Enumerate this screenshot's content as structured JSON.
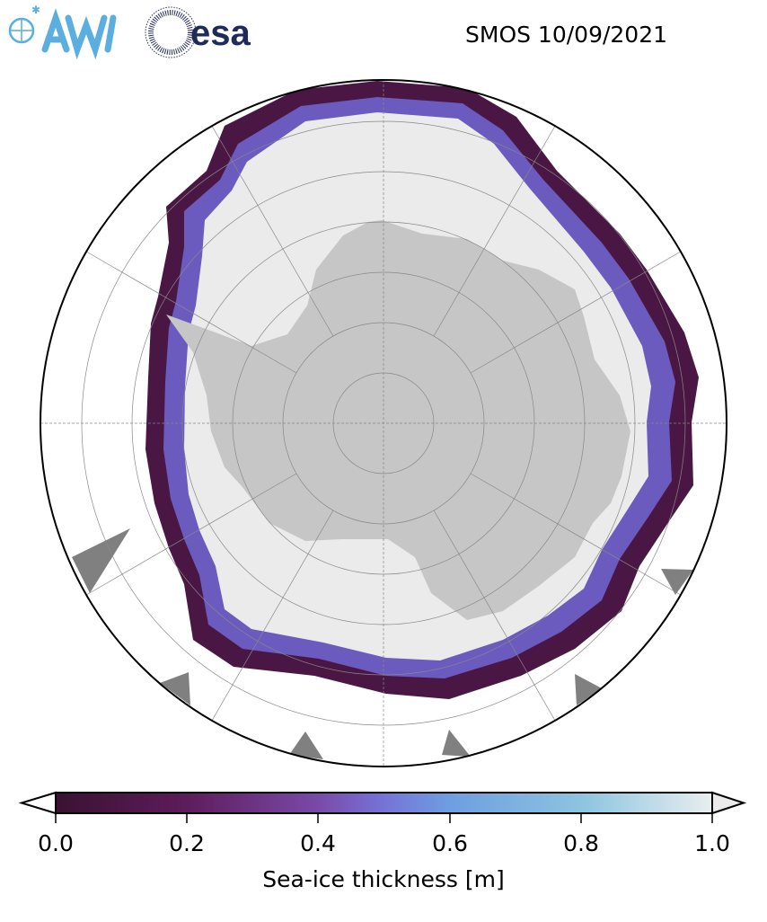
{
  "header": {
    "title": "SMOS 10/09/2021",
    "logos": [
      "AWI",
      "esa"
    ]
  },
  "map": {
    "projection": "south-polar-stereographic",
    "variable": "sea-ice thickness",
    "colors": {
      "land": "#c6c6c6",
      "other_land": "#808080",
      "thick_ice": "#ebebeb",
      "ocean": "#ffffff",
      "grid": "#888888"
    }
  },
  "colorbar": {
    "label": "Sea-ice thickness [m]",
    "ticks": [
      "0.0",
      "0.2",
      "0.4",
      "0.6",
      "0.8",
      "1.0"
    ],
    "range": [
      0.0,
      1.0
    ],
    "extend": "both",
    "colors": [
      "#3a1230",
      "#5e1c5c",
      "#7a4aa8",
      "#7673d8",
      "#6e9ee0",
      "#8cc4e0",
      "#e8eeee"
    ]
  }
}
